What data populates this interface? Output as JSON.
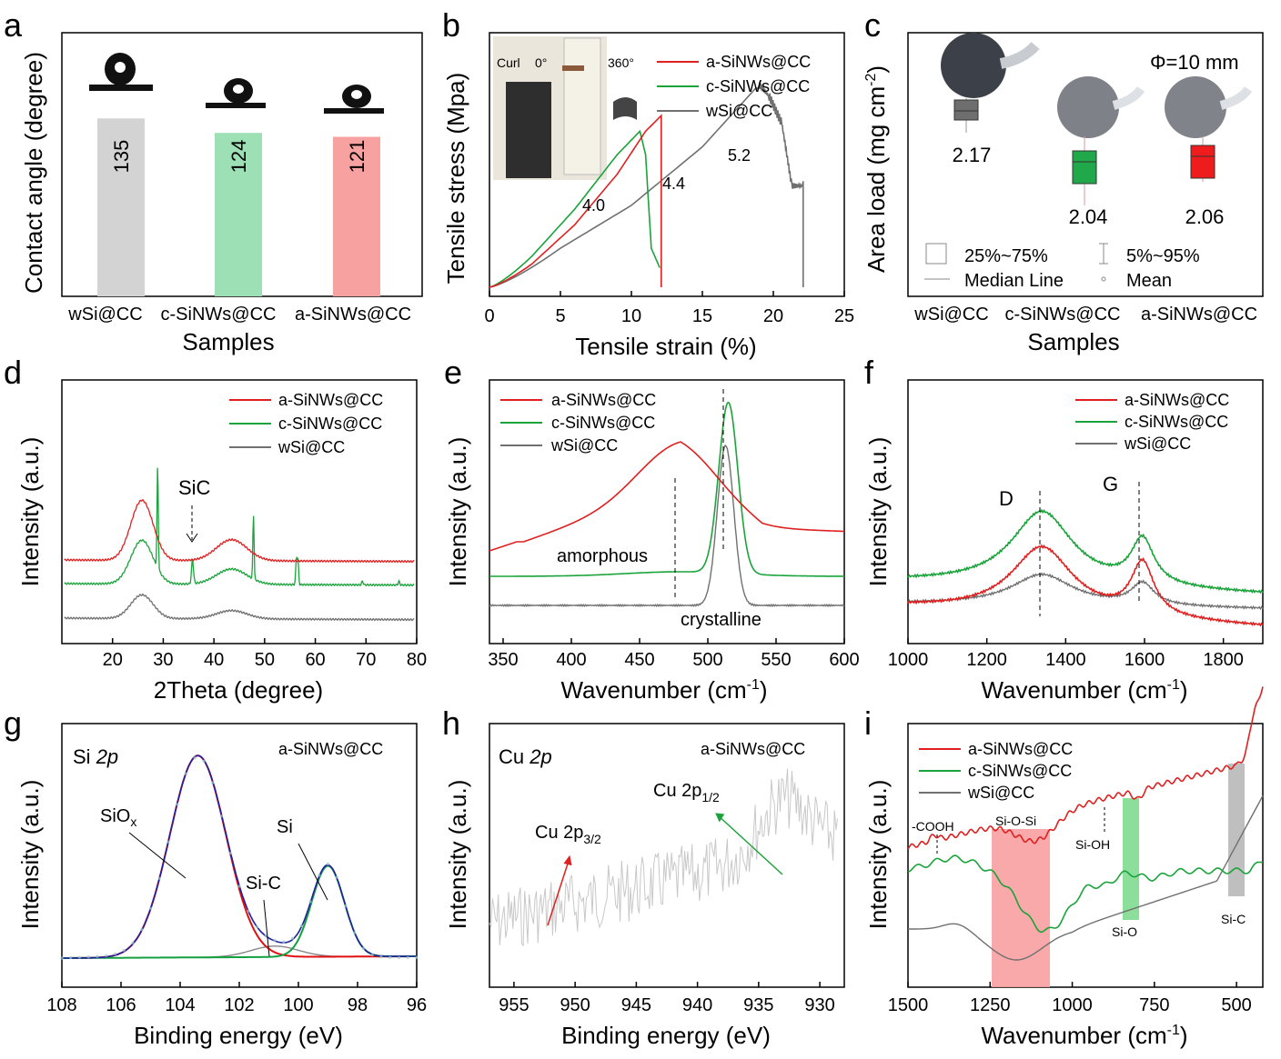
{
  "colors": {
    "a": "#e02020",
    "c": "#1aa33a",
    "w": "#707070",
    "gray_bar": "#d3d3d3",
    "green_bar": "#9ee0b6",
    "red_bar": "#f8a1a1"
  },
  "panels": {
    "a": {
      "label": "a",
      "ylabel": "Contact angle (degree)",
      "xlabel": "Samples"
    },
    "b": {
      "label": "b",
      "ylabel": "Tensile stress (Mpa)",
      "xlabel": "Tensile strain (%)",
      "inset": {
        "curl": "Curl",
        "deg0": "0°",
        "deg360": "360°"
      }
    },
    "c": {
      "label": "c",
      "ylabel": "Area load (mg cm",
      "ylabel_sup": "-2",
      "ylabel_end": ")",
      "xlabel": "Samples",
      "phi": "Φ=10 mm",
      "legend": {
        "box": "25%~75%",
        "whisker": "5%~95%",
        "median": "Median Line",
        "mean": "Mean"
      }
    },
    "d": {
      "label": "d",
      "ylabel": "Intensity (a.u.)",
      "xlabel": "2Theta (degree)",
      "annotation": "SiC"
    },
    "e": {
      "label": "e",
      "ylabel": "Intensity (a.u.)",
      "xlabel": "Wavenumber (cm",
      "xlabel_sup": "-1",
      "xlabel_end": ")",
      "amorphous": "amorphous",
      "crystalline": "crystalline"
    },
    "f": {
      "label": "f",
      "ylabel": "Intensity (a.u.)",
      "xlabel": "Wavenumber (cm",
      "xlabel_sup": "-1",
      "xlabel_end": ")",
      "D": "D",
      "G": "G"
    },
    "g": {
      "label": "g",
      "ylabel": "Intensity (a.u.)",
      "xlabel": "Binding energy (eV)",
      "title": "Si ",
      "title_it": "2p",
      "sample": "a-SiNWs@CC",
      "SiOx": "SiO",
      "SiOx_sub": "x",
      "SiC": "Si-C",
      "Si": "Si"
    },
    "h": {
      "label": "h",
      "ylabel": "Intensity (a.u.)",
      "xlabel": "Binding energy (eV)",
      "title": "Cu ",
      "title_it": "2p",
      "sample": "a-SiNWs@CC",
      "p32": "Cu 2p",
      "p32_sub": "3/2",
      "p12": "Cu 2p",
      "p12_sub": "1/2"
    },
    "i": {
      "label": "i",
      "ylabel": "Intensity (a.u.)",
      "xlabel": "Wavenumber (cm",
      "xlabel_sup": "-1",
      "xlabel_end": ")",
      "COOH": "-COOH",
      "SiOSi": "Si-O-Si",
      "SiOH": "Si-OH",
      "SiO": "Si-O",
      "SiC": "Si-C"
    }
  },
  "legend": {
    "a": "a-SiNWs@CC",
    "c": "c-SiNWs@CC",
    "w": "wSi@CC"
  },
  "chart_data": [
    {
      "id": "a",
      "type": "bar",
      "categories": [
        "wSi@CC",
        "c-SiNWs@CC",
        "a-SiNWs@CC"
      ],
      "values": [
        135,
        124,
        121
      ],
      "ylim": [
        0,
        200
      ],
      "ylabel": "Contact angle (degree)",
      "xlabel": "Samples"
    },
    {
      "id": "b",
      "type": "line",
      "xlabel": "Tensile strain (%)",
      "ylabel": "Tensile stress (Mpa)",
      "xlim": [
        0,
        25
      ],
      "xticks": [
        0,
        5,
        10,
        15,
        20,
        25
      ],
      "series": [
        {
          "name": "a-SiNWs@CC",
          "x": [
            0,
            3,
            6,
            9,
            11,
            12.1,
            12.1
          ],
          "y": [
            0,
            0.6,
            1.6,
            2.9,
            4.0,
            4.4,
            0
          ]
        },
        {
          "name": "c-SiNWs@CC",
          "x": [
            0,
            3,
            6,
            9,
            10.6,
            11.0,
            11.4,
            12.0
          ],
          "y": [
            0,
            0.8,
            2.0,
            3.4,
            4.0,
            3.4,
            1.0,
            0.5
          ]
        },
        {
          "name": "wSi@CC",
          "x": [
            0,
            5,
            10,
            15,
            19,
            19.7,
            20.6,
            21.3,
            22.1,
            22.1
          ],
          "y": [
            0,
            1.0,
            2.1,
            3.6,
            5.2,
            4.9,
            4.2,
            2.6,
            2.6,
            0
          ]
        }
      ],
      "peak_labels": [
        "4.0",
        "4.4",
        "5.2"
      ]
    },
    {
      "id": "c",
      "type": "box",
      "categories": [
        "wSi@CC",
        "c-SiNWs@CC",
        "a-SiNWs@CC"
      ],
      "values": [
        2.17,
        2.04,
        2.06
      ],
      "ylabel": "Area load (mg cm-2)",
      "xlabel": "Samples"
    },
    {
      "id": "d",
      "type": "line",
      "xlabel": "2Theta (degree)",
      "ylabel": "Intensity (a.u.)",
      "xlim": [
        10,
        80
      ],
      "xticks": [
        20,
        30,
        40,
        50,
        60,
        70,
        80
      ],
      "series_names": [
        "a-SiNWs@CC",
        "c-SiNWs@CC",
        "wSi@CC"
      ]
    },
    {
      "id": "e",
      "type": "line",
      "xlabel": "Wavenumber (cm-1)",
      "ylabel": "Intensity (a.u.)",
      "xlim": [
        340,
        600
      ],
      "xticks": [
        350,
        400,
        450,
        500,
        550,
        600
      ],
      "series_names": [
        "a-SiNWs@CC",
        "c-SiNWs@CC",
        "wSi@CC"
      ]
    },
    {
      "id": "f",
      "type": "line",
      "xlabel": "Wavenumber (cm-1)",
      "ylabel": "Intensity (a.u.)",
      "xlim": [
        1000,
        1900
      ],
      "xticks": [
        1000,
        1200,
        1400,
        1600,
        1800
      ],
      "series_names": [
        "a-SiNWs@CC",
        "c-SiNWs@CC",
        "wSi@CC"
      ]
    },
    {
      "id": "g",
      "type": "line",
      "xlabel": "Binding energy (eV)",
      "ylabel": "Intensity (a.u.)",
      "xlim": [
        108,
        96
      ],
      "xticks": [
        108,
        106,
        104,
        102,
        100,
        98,
        96
      ]
    },
    {
      "id": "h",
      "type": "line",
      "xlabel": "Binding energy (eV)",
      "ylabel": "Intensity (a.u.)",
      "xlim": [
        957,
        928
      ],
      "xticks": [
        955,
        950,
        945,
        940,
        935,
        930
      ]
    },
    {
      "id": "i",
      "type": "line",
      "xlabel": "Wavenumber (cm-1)",
      "ylabel": "Intensity (a.u.)",
      "xlim": [
        1500,
        420
      ],
      "xticks": [
        1500,
        1250,
        1000,
        750,
        500
      ],
      "series_names": [
        "a-SiNWs@CC",
        "c-SiNWs@CC",
        "wSi@CC"
      ]
    }
  ]
}
